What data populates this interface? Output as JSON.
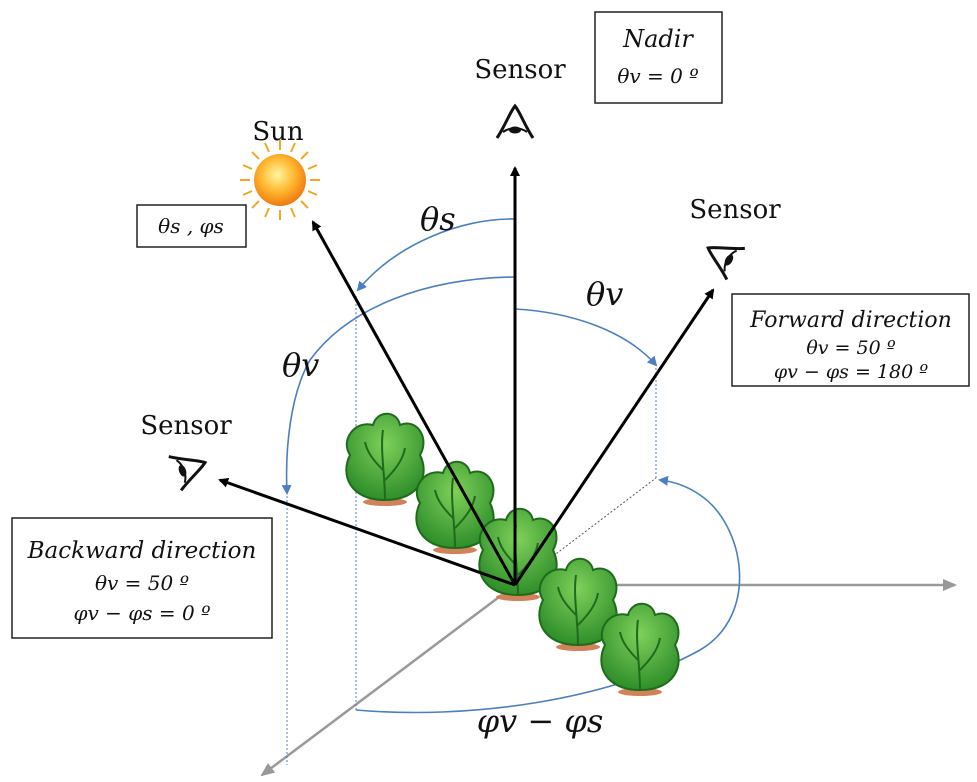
{
  "labels": {
    "sun": "Sun",
    "sensor_top": "Sensor",
    "sensor_right": "Sensor",
    "sensor_left": "Sensor",
    "theta_s": "θs",
    "theta_v_right": "θv",
    "theta_v_left": "θv",
    "phi_diff": "φv − φs"
  },
  "boxes": {
    "nadir": {
      "line1": "Nadir",
      "line2": "θv = 0 º"
    },
    "sun_angles": {
      "line1": "θs , φs"
    },
    "forward": {
      "line1": "Forward direction",
      "line2": "θv = 50 º",
      "line3": "φv − φs = 180 º"
    },
    "backward": {
      "line1": "Backward direction",
      "line2": "θv = 50 º",
      "line3": "φv − φs = 0 º"
    }
  },
  "colors": {
    "vector": "#000000",
    "arc": "#4a7fc1",
    "axis": "#999999",
    "guide": "#4a7fc1",
    "leaf": "#3da336",
    "leaf_dark": "#1f6b1c",
    "soil": "#d2825a",
    "sun": "#f5a623"
  },
  "icons": {
    "sun": "sun-icon",
    "sensor": "eye-icon",
    "plant": "plant-icon"
  }
}
